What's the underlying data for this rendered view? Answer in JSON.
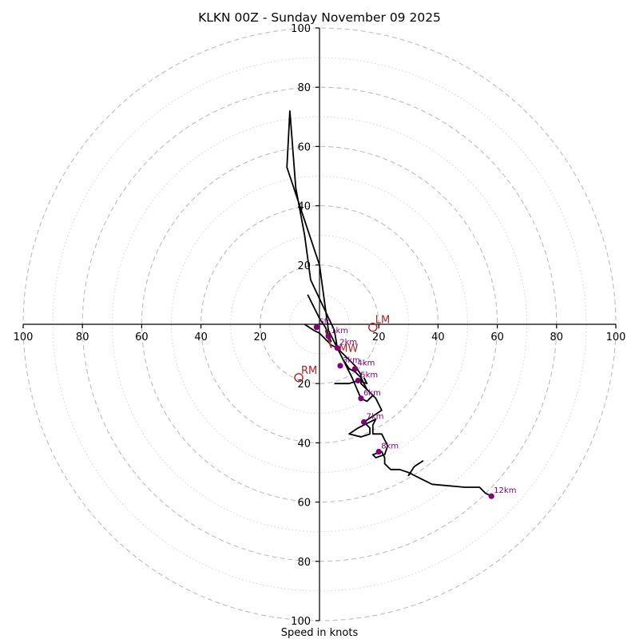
{
  "chart_data": {
    "type": "hodograph",
    "title": "KLKN 00Z - Sunday November 09 2025",
    "xlabel": "Speed in knots",
    "range": 100,
    "rings_major": [
      20,
      40,
      60,
      80,
      100
    ],
    "rings_minor": [
      10,
      30,
      50,
      70,
      90
    ],
    "x_tick_labels": [
      "100",
      "80",
      "60",
      "40",
      "20",
      "20",
      "40",
      "60",
      "80",
      "100"
    ],
    "x_tick_values": [
      -100,
      -80,
      -60,
      -40,
      -20,
      20,
      40,
      60,
      80,
      100
    ],
    "y_tick_labels_top": [
      "20",
      "40",
      "60",
      "80",
      "100"
    ],
    "y_tick_values_top": [
      20,
      40,
      60,
      80,
      100
    ],
    "y_tick_labels_bottom": [
      "20",
      "40",
      "60",
      "80",
      "100"
    ],
    "y_tick_values_bottom": [
      -20,
      -40,
      -60,
      -80,
      -100
    ],
    "trace_color": "#000000",
    "marker_color": "#800080",
    "motion_color": "#b22222",
    "hodograph_trace": [
      [
        -5,
        0
      ],
      [
        -2,
        -2
      ],
      [
        0,
        -3
      ],
      [
        2,
        -5
      ],
      [
        4,
        -7
      ],
      [
        6,
        -8
      ],
      [
        8,
        -10
      ],
      [
        10,
        -12
      ],
      [
        12,
        -14
      ],
      [
        14,
        -17
      ],
      [
        14,
        -20
      ],
      [
        16,
        -22
      ],
      [
        18,
        -24
      ],
      [
        16,
        -26
      ],
      [
        14,
        -25
      ],
      [
        11,
        -18
      ],
      [
        7,
        -10
      ],
      [
        5,
        -6
      ],
      [
        3,
        -2
      ],
      [
        0,
        20
      ],
      [
        -11,
        53
      ],
      [
        -10,
        72
      ],
      [
        -8,
        46
      ],
      [
        -5,
        30
      ],
      [
        -3,
        15
      ],
      [
        5,
        -2
      ],
      [
        6,
        -8
      ],
      [
        8,
        -12
      ],
      [
        10,
        -15
      ],
      [
        12,
        -16
      ],
      [
        14,
        -18
      ],
      [
        16,
        -22
      ],
      [
        19,
        -25
      ],
      [
        21,
        -29
      ],
      [
        18,
        -31
      ],
      [
        15,
        -33
      ],
      [
        17,
        -35
      ],
      [
        17,
        -37
      ],
      [
        14,
        -38
      ],
      [
        10,
        -37
      ],
      [
        13,
        -35
      ],
      [
        15,
        -34
      ],
      [
        19,
        -32
      ],
      [
        18,
        -34
      ],
      [
        18,
        -37
      ],
      [
        21,
        -37
      ],
      [
        23,
        -41
      ],
      [
        22,
        -44
      ],
      [
        19,
        -45
      ],
      [
        18,
        -44
      ],
      [
        21,
        -43
      ],
      [
        22,
        -45
      ],
      [
        22,
        -47
      ],
      [
        23,
        -48
      ],
      [
        24,
        -49
      ],
      [
        27,
        -49
      ],
      [
        30,
        -50
      ],
      [
        34,
        -52
      ],
      [
        38,
        -54
      ],
      [
        49,
        -55
      ],
      [
        54,
        -55
      ],
      [
        56,
        -57
      ],
      [
        58,
        -58
      ]
    ],
    "trace_spur_a": [
      [
        -4,
        10
      ],
      [
        0,
        2
      ],
      [
        2,
        -1
      ],
      [
        4,
        -6
      ]
    ],
    "trace_spur_b": [
      [
        5,
        -20
      ],
      [
        10,
        -20
      ],
      [
        13,
        -19
      ],
      [
        16,
        -20
      ],
      [
        15,
        -18
      ]
    ],
    "trace_spur_c": [
      [
        31,
        -50
      ],
      [
        30,
        -51
      ],
      [
        32,
        -48
      ],
      [
        35,
        -46
      ]
    ],
    "height_markers": [
      {
        "label": "Sfc",
        "u": -1,
        "v": -1
      },
      {
        "label": "1km",
        "u": 3,
        "v": -4
      },
      {
        "label": "2km",
        "u": 6,
        "v": -8
      },
      {
        "label": "3km",
        "u": 7,
        "v": -14
      },
      {
        "label": "4km",
        "u": 12,
        "v": -15
      },
      {
        "label": "5km",
        "u": 13,
        "v": -19
      },
      {
        "label": "6km",
        "u": 14,
        "v": -25
      },
      {
        "label": "7km",
        "u": 15,
        "v": -33
      },
      {
        "label": "8km",
        "u": 20,
        "v": -43
      },
      {
        "label": "12km",
        "u": 58,
        "v": -58
      }
    ],
    "storm_motion": [
      {
        "label": "LM",
        "u": 18,
        "v": -1
      },
      {
        "label": "RM",
        "u": -7,
        "v": -18
      },
      {
        "label": "MW",
        "u": 6,
        "v": -8
      }
    ],
    "storm_motion_vectors": [
      {
        "from": [
          2,
          -2
        ],
        "to": [
          4,
          -8
        ]
      }
    ]
  }
}
